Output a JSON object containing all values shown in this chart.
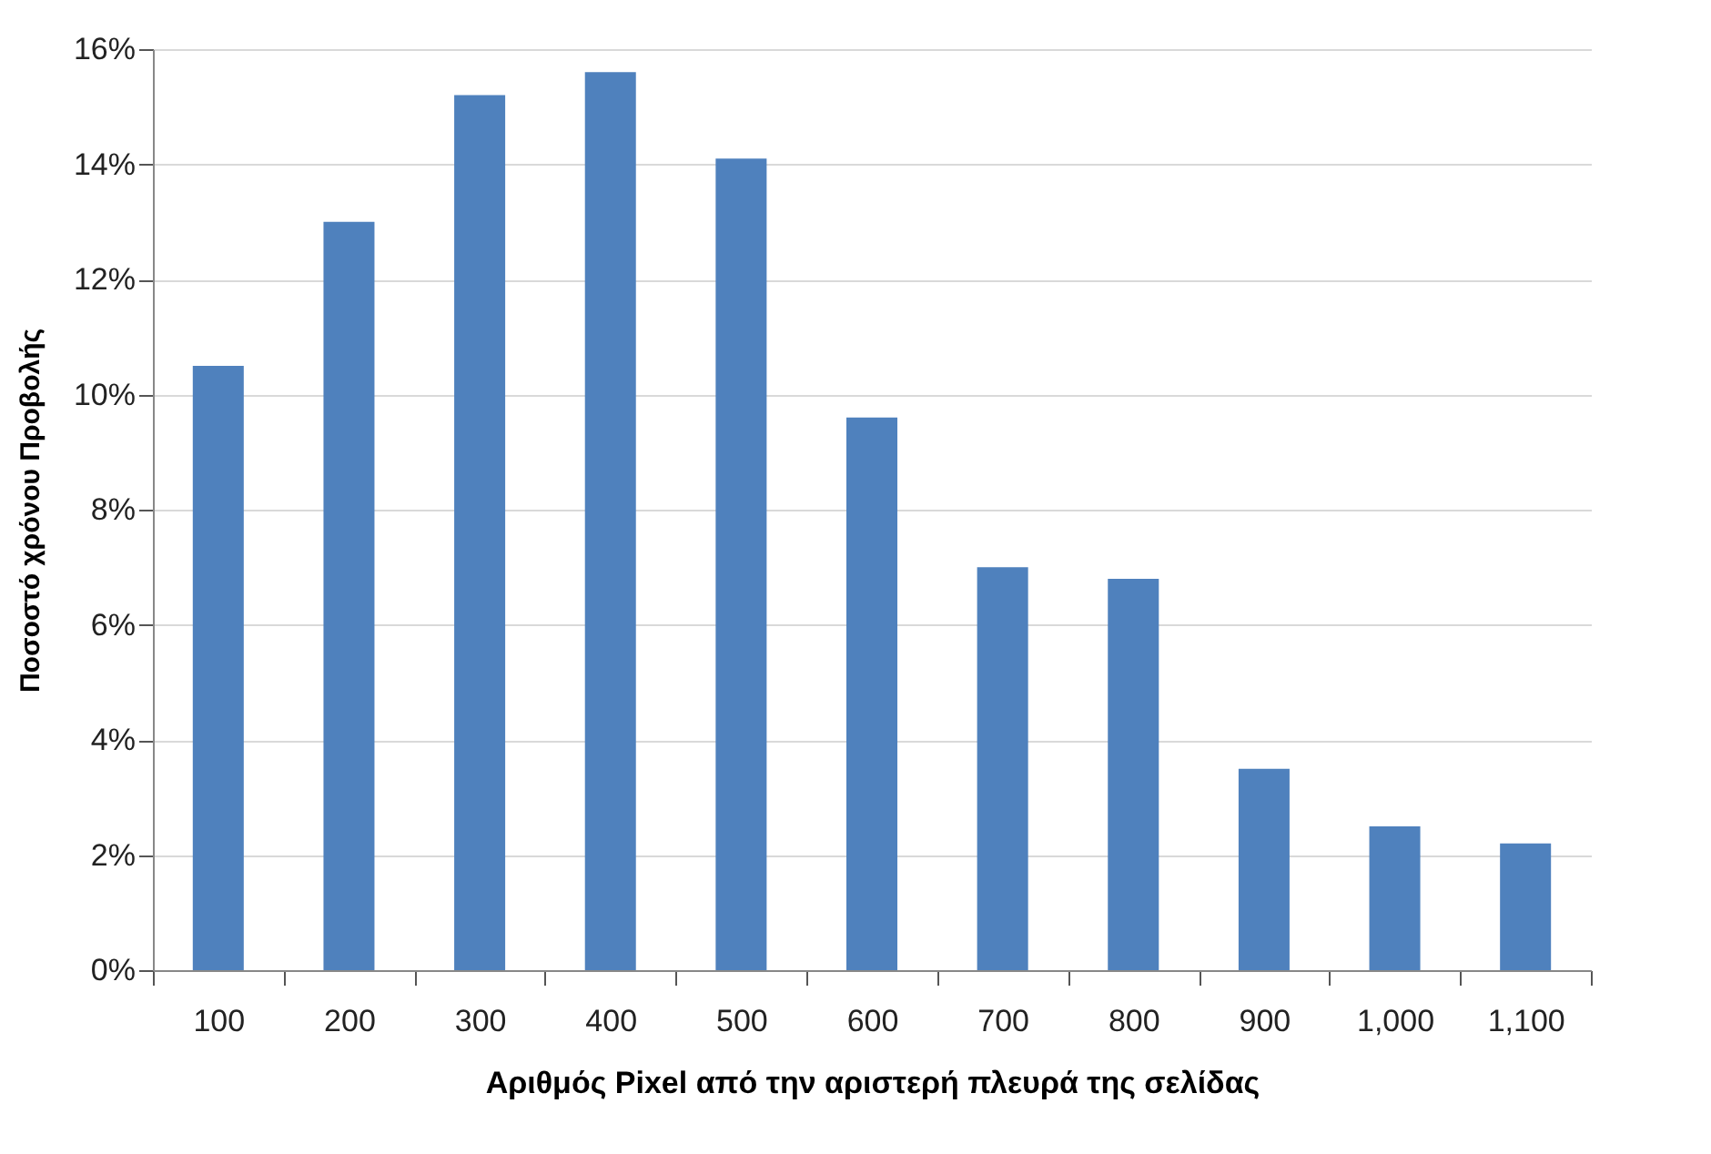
{
  "chart_data": {
    "type": "bar",
    "xlabel": "Αριθμός Pixel από την αριστερή πλευρά της σελίδας",
    "ylabel": "Ποσοστό χρόνου Προβολής",
    "categories": [
      "100",
      "200",
      "300",
      "400",
      "500",
      "600",
      "700",
      "800",
      "900",
      "1,000",
      "1,100"
    ],
    "values": [
      10.5,
      13.0,
      15.2,
      15.6,
      14.1,
      9.6,
      7.0,
      6.8,
      3.5,
      2.5,
      2.2
    ],
    "color": "#4f81bd",
    "ylim": [
      0,
      16
    ],
    "yticks": [
      {
        "value": 0,
        "label": "0%"
      },
      {
        "value": 2,
        "label": "2%"
      },
      {
        "value": 4,
        "label": "4%"
      },
      {
        "value": 6,
        "label": "6%"
      },
      {
        "value": 8,
        "label": "8%"
      },
      {
        "value": 10,
        "label": "10%"
      },
      {
        "value": 12,
        "label": "12%"
      },
      {
        "value": 14,
        "label": "14%"
      },
      {
        "value": 16,
        "label": "16%"
      }
    ],
    "grid": "y"
  }
}
